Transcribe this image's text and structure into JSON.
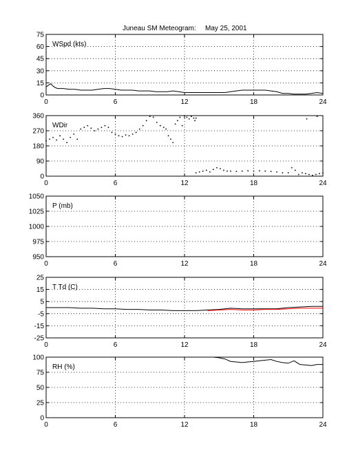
{
  "title": {
    "station": "Juneau SM Meteogram:",
    "date": "May 25, 2001"
  },
  "colors": {
    "black": "#000000",
    "red": "#ff0000"
  },
  "chart_data": [
    {
      "id": "wspd",
      "type": "line",
      "label": "WSpd (kts)",
      "xlim": [
        0,
        24
      ],
      "ylim": [
        0,
        75
      ],
      "xticks": [
        0,
        6,
        12,
        18,
        24
      ],
      "yticks": [
        0,
        15,
        30,
        45,
        60,
        75
      ],
      "grid": true,
      "series": [
        {
          "color": "#000000",
          "x": [
            0,
            0.2,
            0.4,
            0.6,
            0.8,
            1,
            1.5,
            2,
            2.5,
            3,
            3.5,
            4,
            4.5,
            5,
            5.5,
            6,
            6.5,
            7,
            7.5,
            8,
            8.5,
            9,
            9.5,
            10,
            10.5,
            11,
            11.5,
            12,
            12.5,
            13,
            13.5,
            14,
            14.5,
            15,
            15.5,
            16,
            16.5,
            17,
            17.5,
            18,
            18.5,
            19,
            19.5,
            20,
            20.5,
            21,
            21.5,
            22,
            22.5,
            23,
            23.5,
            24
          ],
          "y": [
            10,
            12,
            14,
            11,
            9,
            8,
            8,
            7,
            7,
            6,
            6,
            6,
            7,
            8,
            8,
            7,
            6,
            6,
            6,
            5,
            5,
            5,
            4,
            4,
            4,
            5,
            4,
            3,
            3,
            3,
            3,
            3,
            3,
            3,
            3,
            4,
            5,
            6,
            6,
            6,
            6,
            6,
            5,
            4,
            2,
            2,
            1,
            1,
            1,
            2,
            3,
            2
          ]
        }
      ]
    },
    {
      "id": "wdir",
      "type": "scatter",
      "label": "WDir",
      "xlim": [
        0,
        24
      ],
      "ylim": [
        0,
        360
      ],
      "xticks": [
        0,
        6,
        12,
        18,
        24
      ],
      "yticks": [
        0,
        90,
        180,
        270,
        360
      ],
      "grid": true,
      "series": [
        {
          "color": "#000000",
          "x": [
            0,
            0.3,
            0.6,
            0.9,
            1.2,
            1.5,
            1.8,
            2.1,
            2.4,
            2.7,
            3,
            3.3,
            3.6,
            3.9,
            4.2,
            4.5,
            4.8,
            5.1,
            5.4,
            5.7,
            6,
            6.3,
            6.6,
            6.9,
            7.2,
            7.5,
            7.8,
            8.1,
            8.4,
            8.7,
            9,
            9.3,
            9.6,
            9.9,
            10.2,
            10.4,
            10.6,
            10.8,
            11,
            11.2,
            11.4,
            11.6,
            11.8,
            12,
            12.2,
            12.4,
            12.6,
            12.8,
            13,
            13.3,
            13.6,
            13.9,
            14.2,
            14.5,
            14.8,
            15.1,
            15.4,
            15.7,
            16,
            16.5,
            17,
            17.5,
            18,
            18.5,
            19,
            19.5,
            20,
            20.5,
            21,
            21.3,
            21.6,
            21.9,
            22.2,
            22.5,
            22.8,
            23.1,
            23.4,
            23.7,
            24,
            22.6,
            23.5,
            12.9,
            13.0
          ],
          "y": [
            210,
            220,
            230,
            215,
            240,
            220,
            200,
            230,
            250,
            220,
            280,
            290,
            300,
            285,
            270,
            280,
            290,
            300,
            290,
            260,
            250,
            240,
            235,
            245,
            240,
            250,
            260,
            280,
            300,
            330,
            355,
            350,
            320,
            300,
            290,
            280,
            240,
            220,
            200,
            310,
            330,
            350,
            300,
            360,
            350,
            340,
            355,
            345,
            20,
            25,
            30,
            35,
            25,
            40,
            50,
            45,
            35,
            30,
            30,
            28,
            30,
            32,
            30,
            32,
            30,
            28,
            25,
            20,
            20,
            50,
            35,
            10,
            20,
            15,
            10,
            5,
            10,
            15,
            20,
            340,
            355,
            330,
            345
          ]
        }
      ]
    },
    {
      "id": "pres",
      "type": "line",
      "label": "P (mb)",
      "xlim": [
        0,
        24
      ],
      "ylim": [
        950,
        1050
      ],
      "xticks": [
        0,
        6,
        12,
        18,
        24
      ],
      "yticks": [
        950,
        975,
        1000,
        1025,
        1050
      ],
      "grid": true,
      "series": []
    },
    {
      "id": "temp",
      "type": "line",
      "label": "T Td (C)",
      "xlim": [
        0,
        24
      ],
      "ylim": [
        -25,
        25
      ],
      "xticks": [
        0,
        6,
        12,
        18,
        24
      ],
      "yticks": [
        -25,
        -15,
        -5,
        5,
        15,
        25
      ],
      "grid": true,
      "series": [
        {
          "color": "#000000",
          "x": [
            0,
            1,
            2,
            3,
            4,
            5,
            6,
            7,
            8,
            9,
            10,
            11,
            12,
            13,
            14,
            15,
            16,
            17,
            18,
            19,
            20,
            21,
            22,
            23,
            24
          ],
          "y": [
            0,
            0,
            0,
            -0.5,
            -0.5,
            -1,
            -1,
            -1.5,
            -1.5,
            -2,
            -2,
            -2.5,
            -2.5,
            -2.5,
            -2,
            -1.5,
            -0.5,
            -1,
            -1,
            -1,
            -1,
            0,
            0.5,
            1,
            1
          ]
        },
        {
          "color": "#ff0000",
          "x": [
            14,
            15,
            16,
            17,
            18,
            19,
            20,
            21,
            22,
            23,
            24
          ],
          "y": [
            -2.5,
            -2,
            -1.5,
            -2,
            -2,
            -1.5,
            -1.5,
            -1,
            -0.5,
            -0.5,
            -0.5
          ]
        }
      ]
    },
    {
      "id": "rh",
      "type": "line",
      "label": "RH (%)",
      "xlim": [
        0,
        24
      ],
      "ylim": [
        0,
        100
      ],
      "xticks": [
        0,
        6,
        12,
        18,
        24
      ],
      "yticks": [
        0,
        25,
        50,
        75,
        100
      ],
      "grid": true,
      "series": [
        {
          "color": "#000000",
          "x": [
            14,
            14.5,
            15,
            15.5,
            16,
            16.5,
            17,
            17.5,
            18,
            18.5,
            19,
            19.5,
            20,
            20.5,
            21,
            21.5,
            22,
            22.5,
            23,
            23.5,
            24
          ],
          "y": [
            100,
            100,
            99,
            97,
            93,
            92,
            91,
            92,
            93,
            94,
            95,
            96,
            93,
            91,
            90,
            94,
            88,
            87,
            86,
            88,
            88
          ]
        }
      ]
    }
  ]
}
